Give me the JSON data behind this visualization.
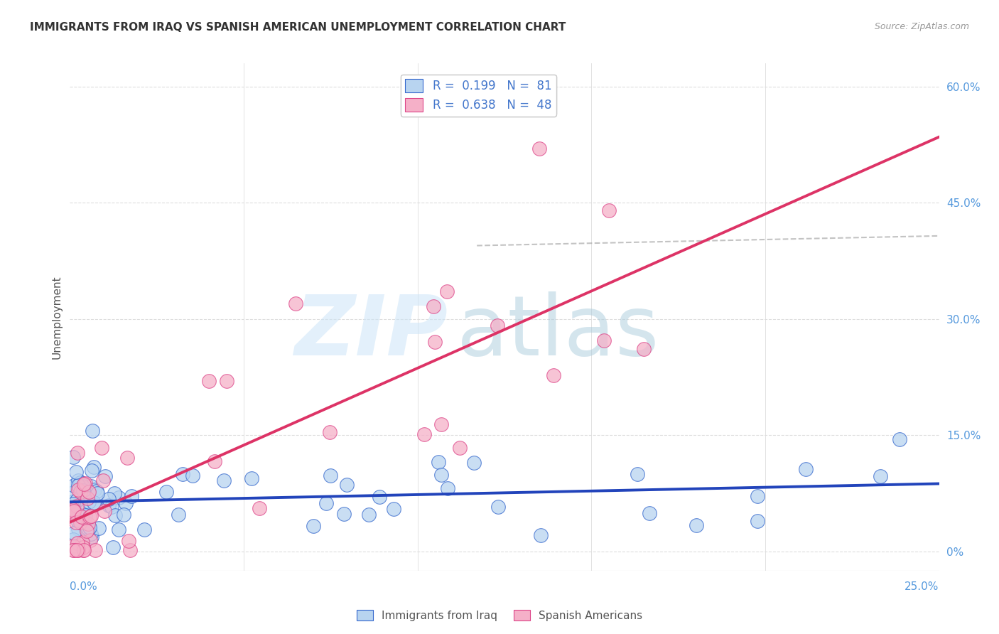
{
  "title": "IMMIGRANTS FROM IRAQ VS SPANISH AMERICAN UNEMPLOYMENT CORRELATION CHART",
  "source": "Source: ZipAtlas.com",
  "ylabel": "Unemployment",
  "right_yticks_labels": [
    "0%",
    "15.0%",
    "30.0%",
    "45.0%",
    "60.0%"
  ],
  "right_ytick_vals": [
    0.0,
    0.15,
    0.3,
    0.45,
    0.6
  ],
  "xmin": 0.0,
  "xmax": 0.25,
  "ymin": -0.025,
  "ymax": 0.63,
  "legend_iraq_label": "R =  0.199   N =  81",
  "legend_spanish_label": "R =  0.638   N =  48",
  "legend_bottom_iraq": "Immigrants from Iraq",
  "legend_bottom_spanish": "Spanish Americans",
  "iraq_face_color": "#b8d4f0",
  "iraq_edge_color": "#3366cc",
  "spanish_face_color": "#f5b0c8",
  "spanish_edge_color": "#dd4488",
  "iraq_line_color": "#2244bb",
  "spanish_line_color": "#dd3366",
  "watermark_zip": "ZIP",
  "watermark_atlas": "atlas",
  "grid_color": "#dddddd",
  "title_fontsize": 11,
  "axis_label_fontsize": 11,
  "tick_label_fontsize": 11,
  "legend_fontsize": 12
}
